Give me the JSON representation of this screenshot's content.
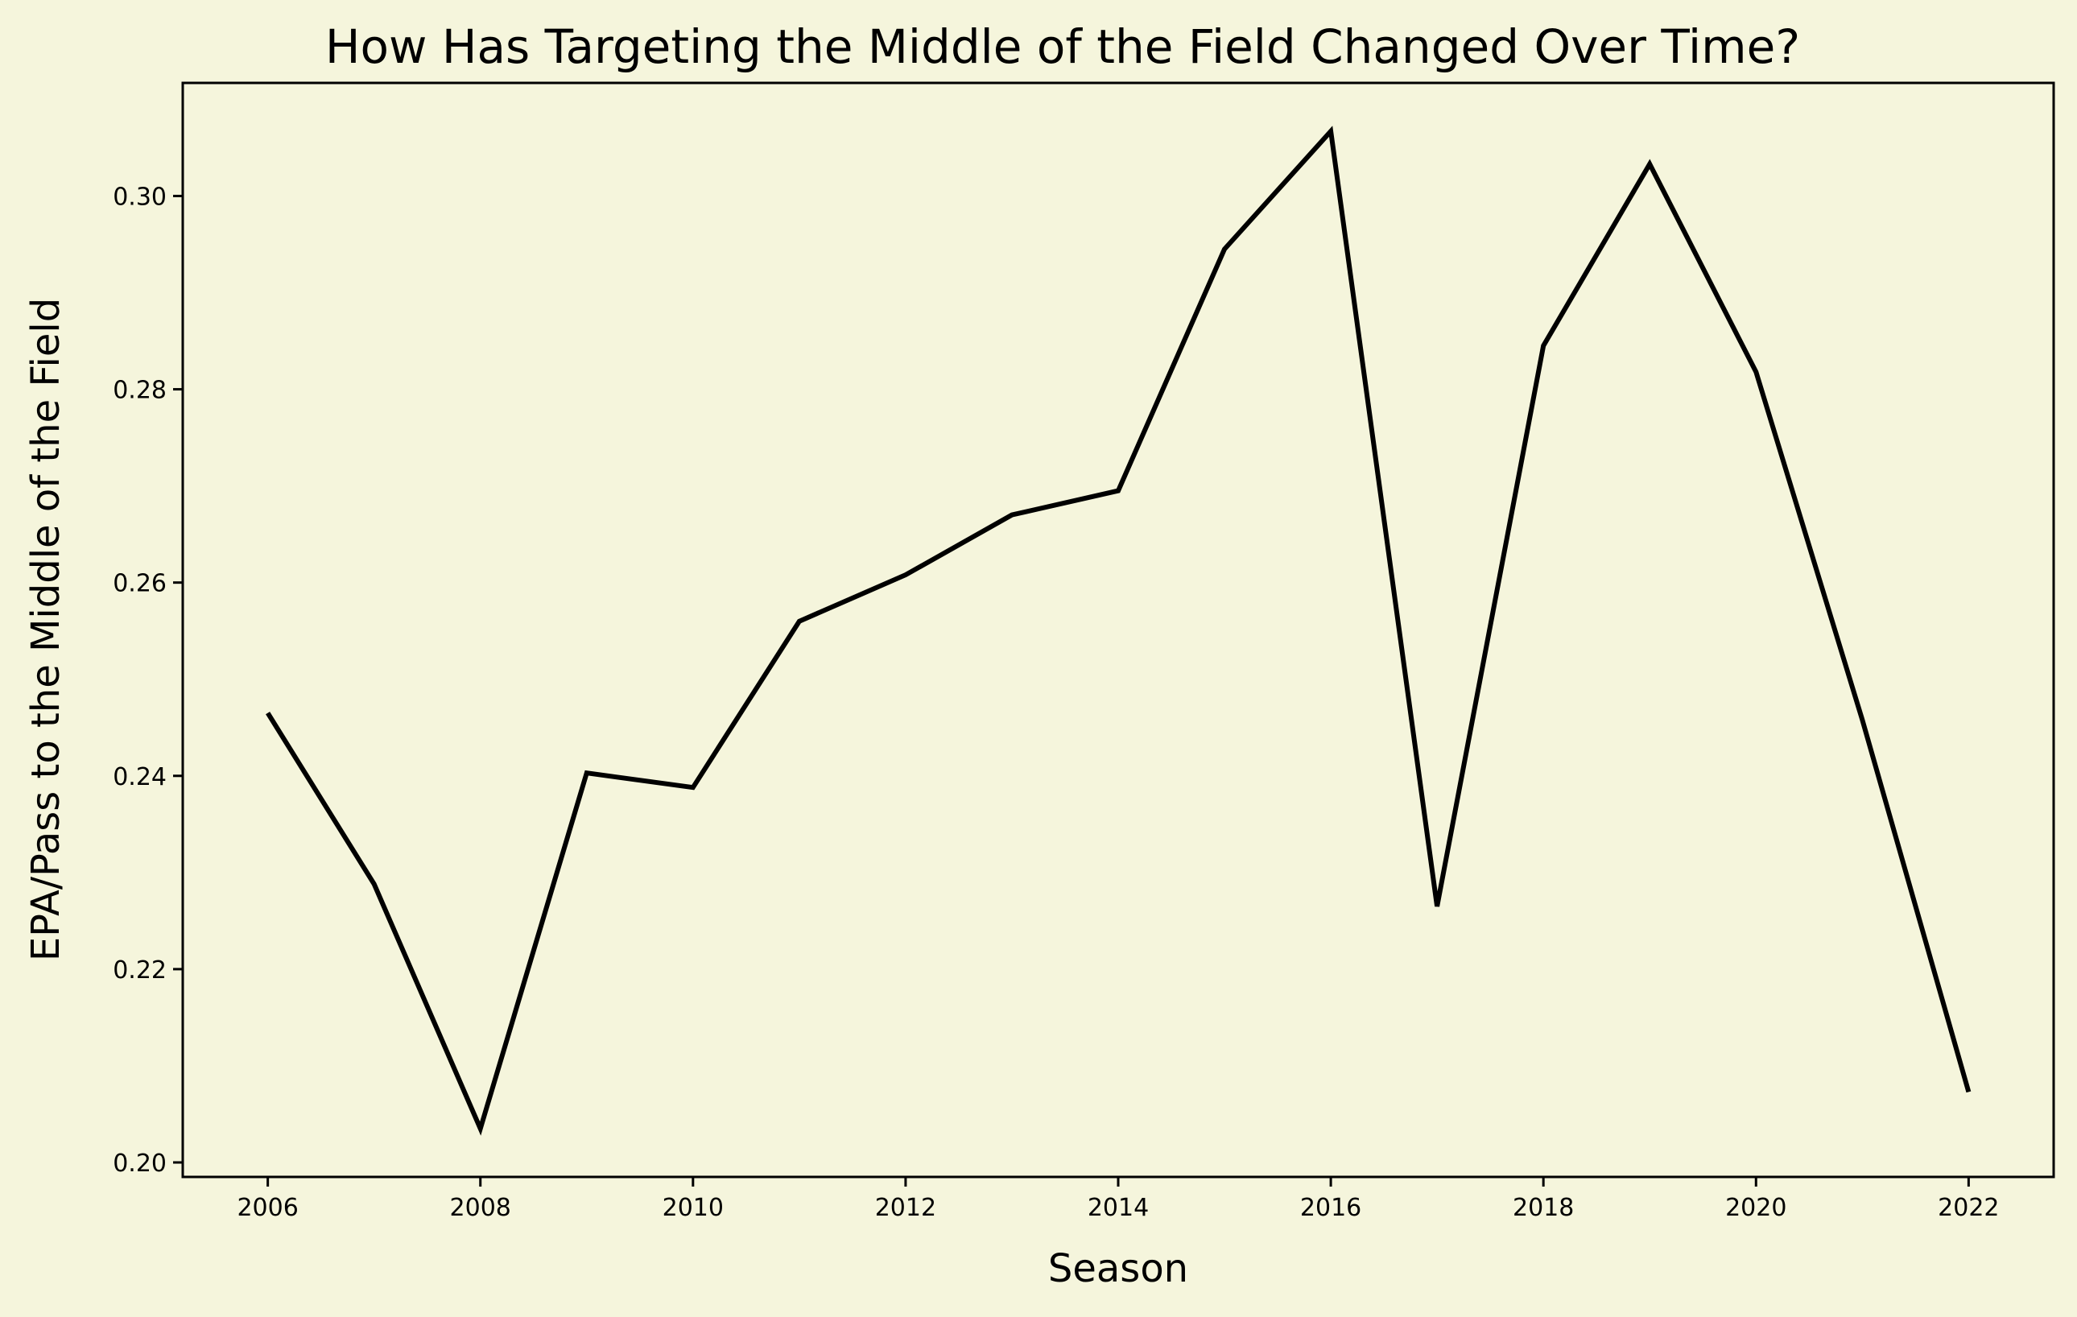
{
  "chart_data": {
    "type": "line",
    "title": "How Has Targeting the Middle of the Field Changed Over Time?",
    "xlabel": "Season",
    "ylabel": "EPA/Pass to the Middle of the Field",
    "x": [
      2006,
      2007,
      2008,
      2009,
      2010,
      2011,
      2012,
      2013,
      2014,
      2015,
      2016,
      2017,
      2018,
      2019,
      2020,
      2021,
      2022
    ],
    "series": [
      {
        "values": [
          0.2465,
          0.2288,
          0.2035,
          0.2403,
          0.2388,
          0.256,
          0.2608,
          0.267,
          0.2695,
          0.2945,
          0.3067,
          0.2265,
          0.2845,
          0.3033,
          0.2818,
          0.2458,
          0.2073
        ],
        "color": "#000000"
      }
    ],
    "xlim": [
      2005.2,
      2022.8
    ],
    "ylim": [
      0.1985,
      0.3117
    ],
    "xticks": [
      "2006",
      "2008",
      "2010",
      "2012",
      "2014",
      "2016",
      "2018",
      "2020",
      "2022"
    ],
    "yticks": [
      "0.20",
      "0.22",
      "0.24",
      "0.26",
      "0.28",
      "0.30"
    ],
    "grid": false,
    "legend": "none",
    "background_color": "#f5f5dc",
    "line_color": "#000000"
  }
}
